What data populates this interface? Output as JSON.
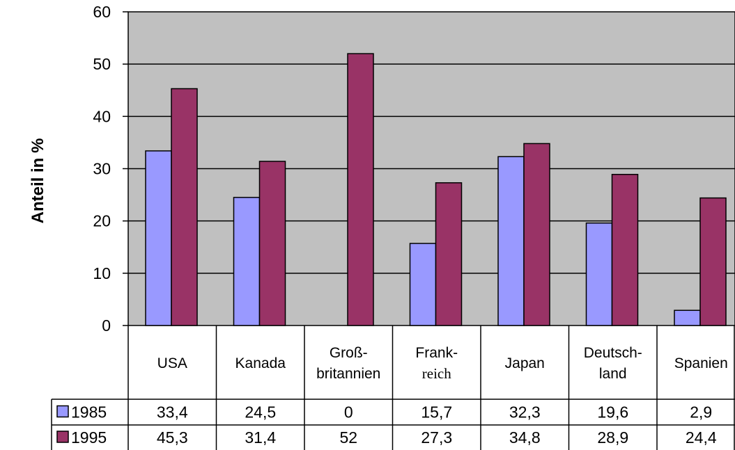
{
  "chart_data": {
    "type": "bar",
    "ylabel": "Anteil in %",
    "ylim": [
      0,
      60
    ],
    "yticks": [
      "0",
      "10",
      "20",
      "30",
      "40",
      "50",
      "60"
    ],
    "grid": true,
    "categories": [
      [
        "USA"
      ],
      [
        "Kanada"
      ],
      [
        "Groß-",
        "britannien"
      ],
      [
        "Frank-",
        "reich"
      ],
      [
        "Japan"
      ],
      [
        "Deutsch-",
        "land"
      ],
      [
        "Spanien"
      ]
    ],
    "series": [
      {
        "name": "1985",
        "color": "#9999ff",
        "values": [
          33.4,
          24.5,
          0,
          15.7,
          32.3,
          19.6,
          2.9
        ],
        "labels": [
          "33,4",
          "24,5",
          "0",
          "15,7",
          "32,3",
          "19,6",
          "2,9"
        ]
      },
      {
        "name": "1995",
        "color": "#993366",
        "values": [
          45.3,
          31.4,
          52,
          27.3,
          34.8,
          28.9,
          24.4
        ],
        "labels": [
          "45,3",
          "31,4",
          "52",
          "27,3",
          "34,8",
          "28,9",
          "24,4"
        ]
      }
    ],
    "plot_background": "#c0c0c0",
    "legend_placement": "data-table"
  }
}
